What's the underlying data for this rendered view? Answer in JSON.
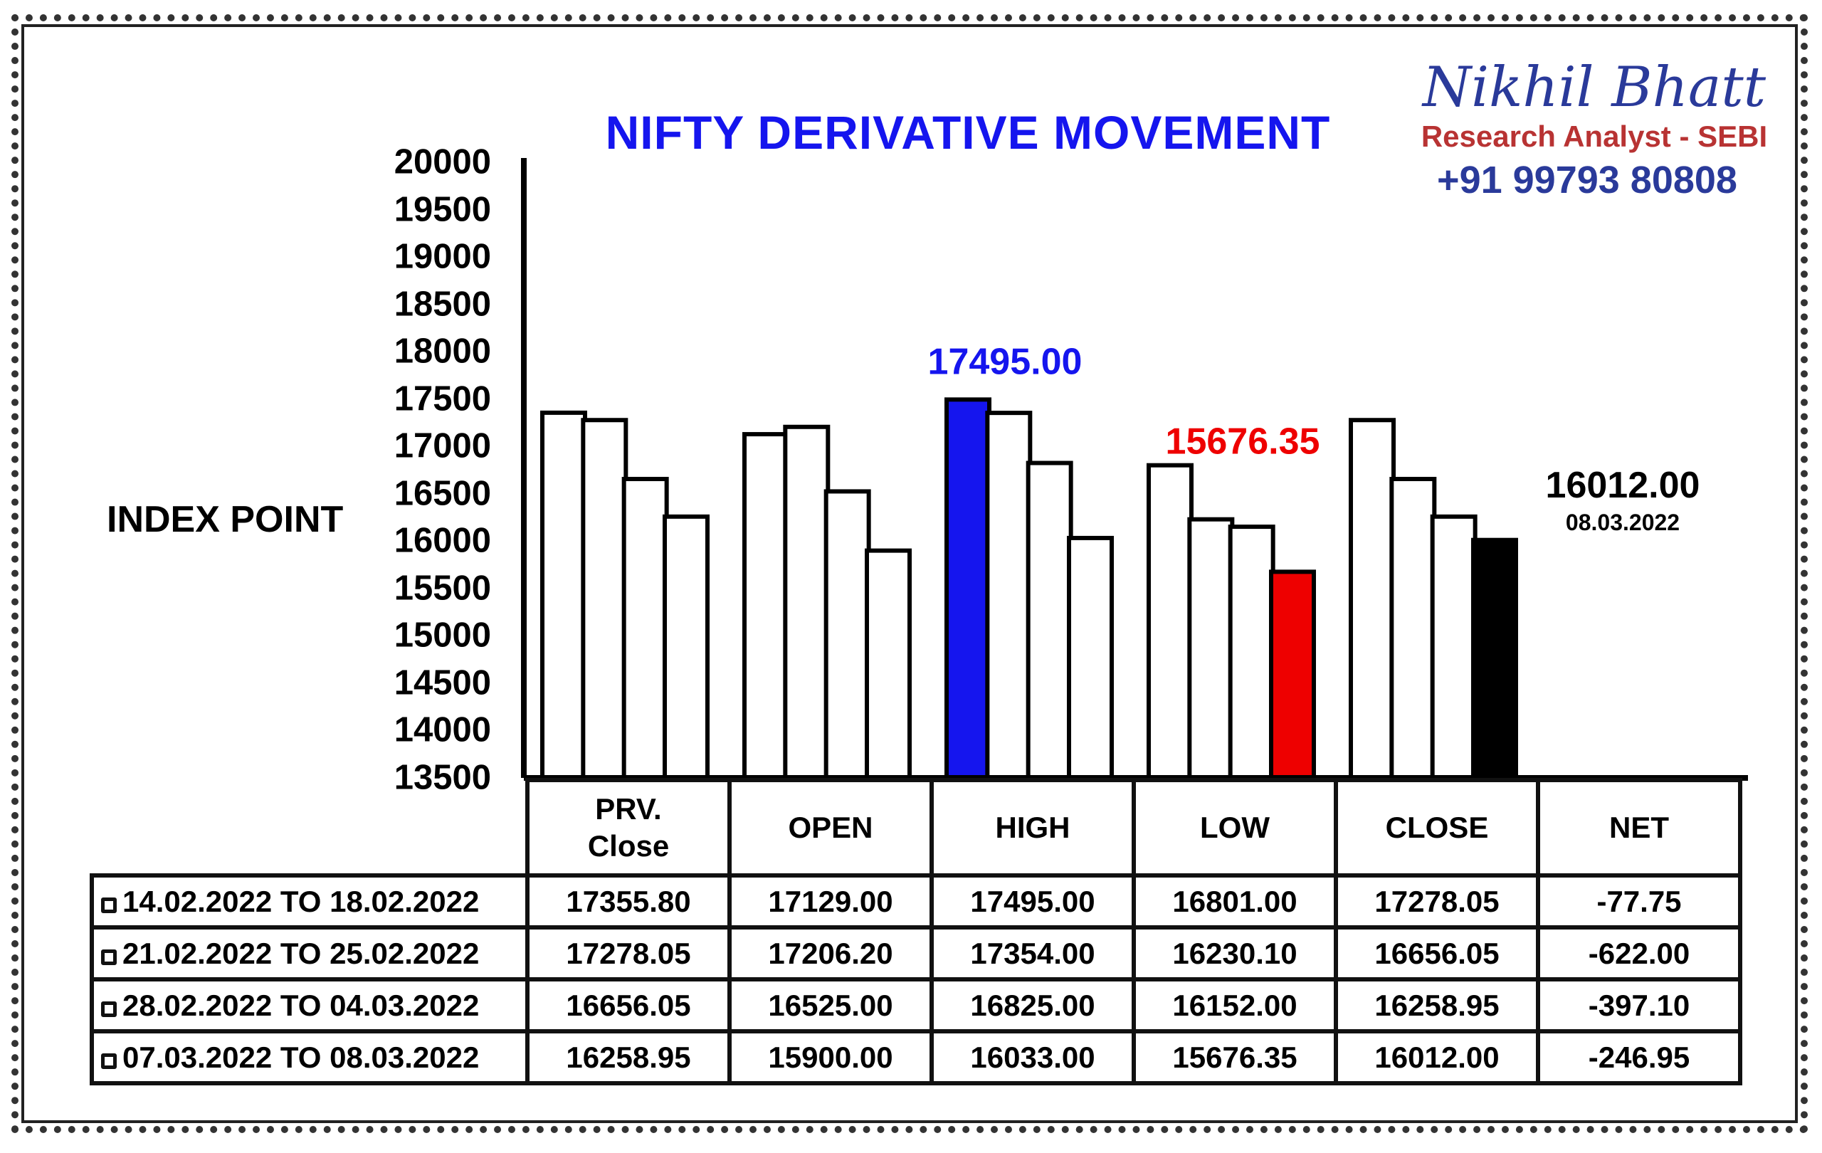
{
  "title": "NIFTY DERIVATIVE MOVEMENT",
  "brand": {
    "name": "Nikhil Bhatt",
    "role": "Research Analyst - SEBI",
    "phone": "+91 99793 80808"
  },
  "colors": {
    "title": "#1515ee",
    "brand_name": "#2a3a9a",
    "brand_role": "#b83333",
    "high_bar": "#1515ee",
    "low_bar": "#ee0000",
    "close_bar": "#000000",
    "default_bar": "#ffffff"
  },
  "chart_data": {
    "type": "bar",
    "ylabel": "INDEX POINT",
    "xlabel": "",
    "ylim": [
      13500,
      20000
    ],
    "yticks": [
      13500,
      14000,
      14500,
      15000,
      15500,
      16000,
      16500,
      17000,
      17500,
      18000,
      18500,
      19000,
      19500,
      20000
    ],
    "categories": [
      "PRV.\nClose",
      "OPEN",
      "HIGH",
      "LOW",
      "CLOSE"
    ],
    "series": [
      {
        "name": "14.02.2022 TO 18.02.2022",
        "values": [
          17355.8,
          17129.0,
          17495.0,
          16801.0,
          17278.05
        ]
      },
      {
        "name": "21.02.2022 TO 25.02.2022",
        "values": [
          17278.05,
          17206.2,
          17354.0,
          16230.1,
          16656.05
        ]
      },
      {
        "name": "28.02.2022 TO 04.03.2022",
        "values": [
          16656.05,
          16525.0,
          16825.0,
          16152.0,
          16258.95
        ]
      },
      {
        "name": "07.03.2022 TO 08.03.2022",
        "values": [
          16258.95,
          15900.0,
          16033.0,
          15676.35,
          16012.0
        ]
      }
    ],
    "highlights": [
      {
        "category": "HIGH",
        "series": 0,
        "color": "#1515ee"
      },
      {
        "category": "LOW",
        "series": 3,
        "color": "#ee0000"
      },
      {
        "category": "CLOSE",
        "series": 3,
        "color": "#000000"
      }
    ],
    "annotations": [
      {
        "text": "17495.00",
        "color": "#1515ee"
      },
      {
        "text": "15676.35",
        "color": "#ee0000"
      }
    ],
    "side_note": {
      "value": "16012.00",
      "date": "08.03.2022"
    },
    "grid": false
  },
  "table": {
    "headers": [
      "PRV.\nClose",
      "OPEN",
      "HIGH",
      "LOW",
      "CLOSE",
      "NET"
    ],
    "rows": [
      {
        "period": "14.02.2022 TO 18.02.2022",
        "cells": [
          "17355.80",
          "17129.00",
          "17495.00",
          "16801.00",
          "17278.05",
          "-77.75"
        ]
      },
      {
        "period": "21.02.2022 TO 25.02.2022",
        "cells": [
          "17278.05",
          "17206.20",
          "17354.00",
          "16230.10",
          "16656.05",
          "-622.00"
        ]
      },
      {
        "period": "28.02.2022 TO 04.03.2022",
        "cells": [
          "16656.05",
          "16525.00",
          "16825.00",
          "16152.00",
          "16258.95",
          "-397.10"
        ]
      },
      {
        "period": "07.03.2022 TO 08.03.2022",
        "cells": [
          "16258.95",
          "15900.00",
          "16033.00",
          "15676.35",
          "16012.00",
          "-246.95"
        ]
      }
    ]
  }
}
